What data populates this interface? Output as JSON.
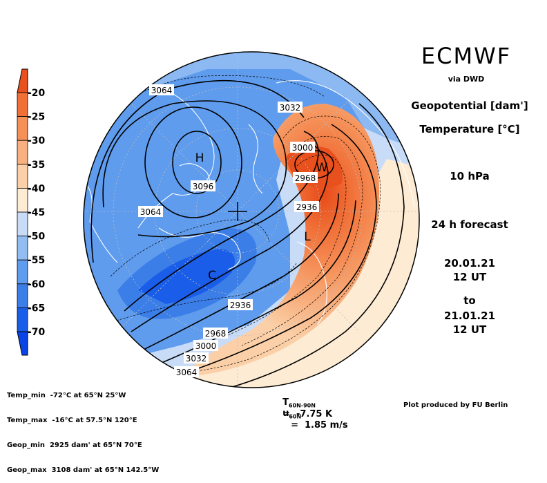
{
  "header": {
    "brand": "ECMWF",
    "via": "via DWD",
    "variable_1": "Geopotential [dam']",
    "variable_2": "Temperature [°C]",
    "level": "10 hPa",
    "forecast": "24 h forecast",
    "start_date": "20.01.21",
    "start_time": "12 UT",
    "to": "to",
    "end_date": "21.01.21",
    "end_time": "12 UT"
  },
  "colorbar": {
    "labels": [
      "-20",
      "-25",
      "-30",
      "-35",
      "-40",
      "-45",
      "-50",
      "-55",
      "-60",
      "-65",
      "-70"
    ],
    "colors": [
      "#e8501e",
      "#f07038",
      "#f59058",
      "#f8b080",
      "#fbd0a8",
      "#fdebd3",
      "#c8dcf8",
      "#92bdf2",
      "#5f9ced",
      "#3b7ee8",
      "#1a5de8",
      "#0a44e6"
    ]
  },
  "map_labels": {
    "contours": [
      "3064",
      "3032",
      "3000",
      "2968",
      "3096",
      "3064",
      "2936",
      "2936",
      "2968",
      "3000",
      "3032",
      "3064"
    ],
    "high": "H",
    "low": "L",
    "warm": "W",
    "cold": "C"
  },
  "stats": {
    "line1": "Temp_min  -72°C at 65°N 25°W",
    "line2": "Temp_max  -16°C at 57.5°N 120°E",
    "line3": "Geop_min  2925 dam' at 65°N 70°E",
    "line4": "Geop_max  3108 dam' at 65°N 142.5°W"
  },
  "means": {
    "t_symbol": "T",
    "t_sub": "60N-90N",
    "t_value": "=  -7.75 K",
    "u_symbol": "u",
    "u_sub": "60N",
    "u_value": "=  1.85 m/s"
  },
  "credit": "Plot produced by FU Berlin"
}
